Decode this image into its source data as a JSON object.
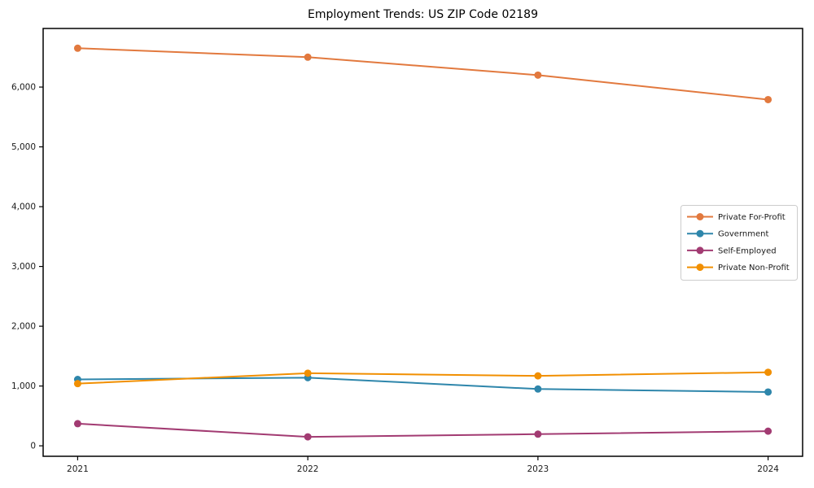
{
  "figure": {
    "title": "Employment Trends: US ZIP Code 02189",
    "background_color": "#ffffff"
  },
  "chart_data": {
    "type": "line",
    "title": "Employment Trends: US ZIP Code 02189",
    "xlabel": "",
    "ylabel": "",
    "categories": [
      "2021",
      "2022",
      "2023",
      "2024"
    ],
    "x_values": [
      2021,
      2022,
      2023,
      2024
    ],
    "series": [
      {
        "name": "Private For-Profit",
        "color": "#E2793E",
        "values": [
          6650,
          6500,
          6200,
          5790
        ]
      },
      {
        "name": "Government",
        "color": "#2E86AB",
        "values": [
          1110,
          1140,
          950,
          900
        ]
      },
      {
        "name": "Self-Employed",
        "color": "#A23B72",
        "values": [
          370,
          150,
          195,
          245
        ]
      },
      {
        "name": "Private Non-Profit",
        "color": "#F18F01",
        "values": [
          1040,
          1215,
          1170,
          1230
        ]
      }
    ],
    "xlim": [
      2020.85,
      2024.15
    ],
    "ylim": [
      -175,
      6980
    ],
    "yticks": [
      0,
      1000,
      2000,
      3000,
      4000,
      5000,
      6000
    ],
    "ytick_labels": [
      "0",
      "1,000",
      "2,000",
      "3,000",
      "4,000",
      "5,000",
      "6,000"
    ],
    "xtick_labels": [
      "2021",
      "2022",
      "2023",
      "2024"
    ],
    "grid": false,
    "legend": {
      "position": "center-right",
      "border_color": "#cccccc",
      "background_color": "#ffffff",
      "entries": [
        "Private For-Profit",
        "Government",
        "Self-Employed",
        "Private Non-Profit"
      ]
    },
    "axis_color": "#000000",
    "marker": "circle"
  }
}
